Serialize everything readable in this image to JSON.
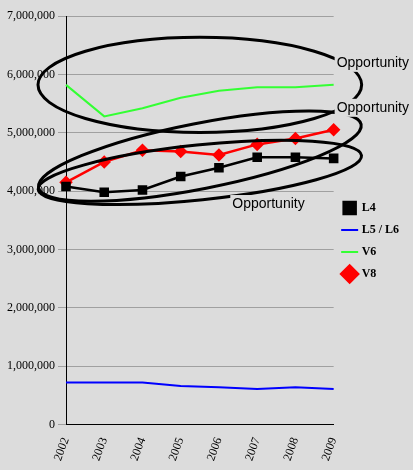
{
  "chart_data": {
    "type": "line",
    "categories": [
      "2002",
      "2003",
      "2004",
      "2005",
      "2006",
      "2007",
      "2008",
      "2009"
    ],
    "series": [
      {
        "name": "L4",
        "color": "#000000",
        "marker": "square",
        "line_style": "solid",
        "values": [
          4080000,
          3980000,
          4020000,
          4250000,
          4400000,
          4580000,
          4580000,
          4560000
        ]
      },
      {
        "name": "L5 / L6",
        "color": "#0000ff",
        "marker": "none",
        "line_style": "solid",
        "values": [
          720000,
          720000,
          720000,
          660000,
          640000,
          610000,
          640000,
          610000
        ]
      },
      {
        "name": "V6",
        "color": "#33ff33",
        "marker": "none",
        "line_style": "solid",
        "values": [
          5820000,
          5280000,
          5420000,
          5600000,
          5720000,
          5780000,
          5780000,
          5820000
        ]
      },
      {
        "name": "V8",
        "color": "#ff0000",
        "marker": "diamond",
        "line_style": "solid",
        "values": [
          4150000,
          4500000,
          4700000,
          4680000,
          4620000,
          4800000,
          4900000,
          5050000
        ]
      }
    ],
    "ylim": [
      0,
      7000000
    ],
    "yticks": [
      0,
      {
        "value": 1000000,
        "label": "1,000,000"
      },
      {
        "value": 2000000,
        "label": "2,000,000"
      },
      {
        "value": 3000000,
        "label": "3,000,000"
      },
      {
        "value": 4000000,
        "label": "4,000,000"
      },
      {
        "value": 5000000,
        "label": "5,000,000"
      },
      {
        "value": 6000000,
        "label": "6,000,000"
      },
      {
        "value": 7000000,
        "label": "7,000,000"
      }
    ],
    "grid": true,
    "legend": "right",
    "annotations": [
      {
        "text": "Opportunity",
        "series": "V6"
      },
      {
        "text": "Opportunity",
        "series": "V8"
      },
      {
        "text": "Opportunity",
        "series": "L4"
      }
    ]
  }
}
